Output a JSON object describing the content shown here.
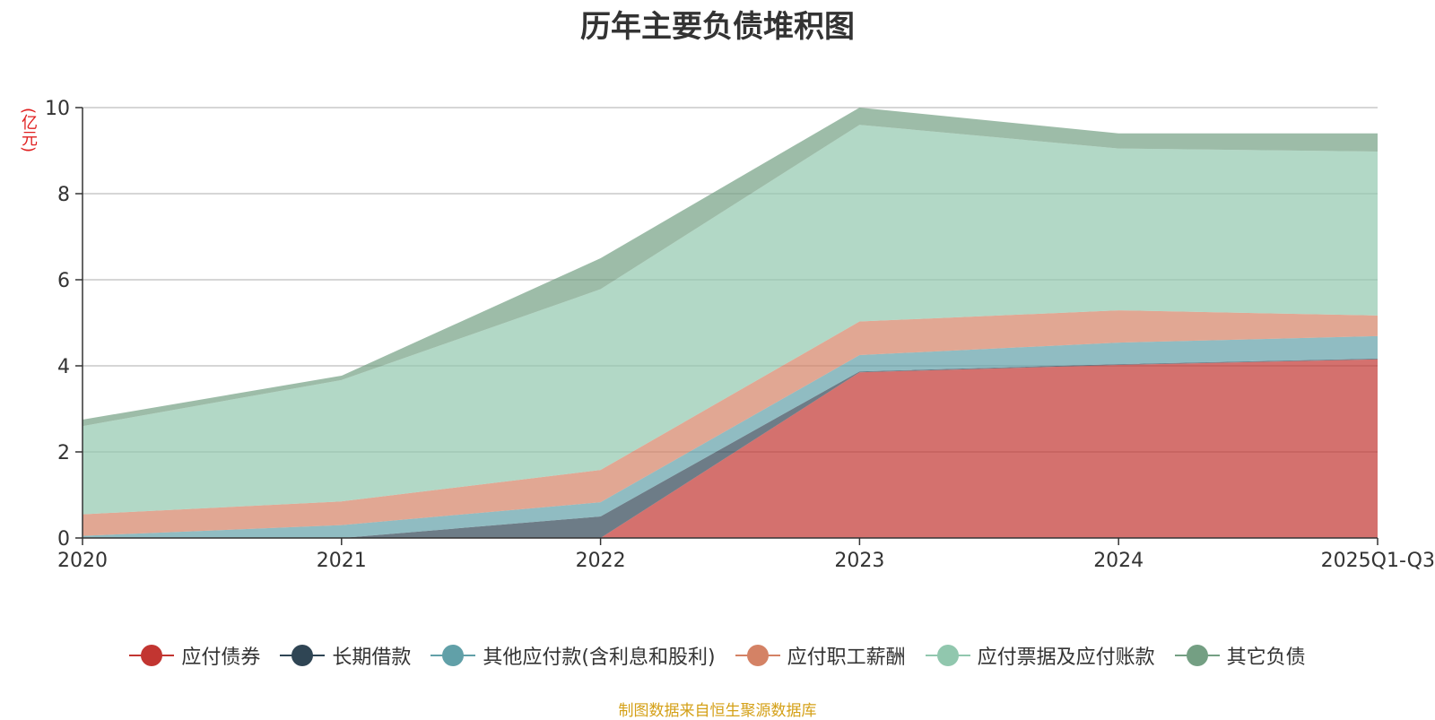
{
  "chart_data": {
    "type": "area",
    "stacked": true,
    "title": "历年主要负债堆积图",
    "ylabel": "(亿元)",
    "ylim": [
      0,
      10
    ],
    "yticks": [
      0,
      2,
      4,
      6,
      8,
      10
    ],
    "categories": [
      "2020",
      "2021",
      "2022",
      "2023",
      "2024",
      "2025Q1-Q3"
    ],
    "grid": true,
    "legend_position": "bottom",
    "series": [
      {
        "name": "应付债券",
        "color": "#c23531",
        "values": [
          0,
          0,
          0,
          3.85,
          4.02,
          4.15
        ]
      },
      {
        "name": "长期借款",
        "color": "#2f4554",
        "values": [
          0,
          0,
          0.5,
          0.02,
          0.02,
          0.02
        ]
      },
      {
        "name": "其他应付款(含利息和股利)",
        "color": "#61a0a8",
        "values": [
          0.05,
          0.3,
          0.33,
          0.38,
          0.5,
          0.52
        ]
      },
      {
        "name": "应付职工薪酬",
        "color": "#d48265",
        "values": [
          0.5,
          0.55,
          0.75,
          0.78,
          0.75,
          0.48
        ]
      },
      {
        "name": "应付票据及应付账款",
        "color": "#91c7ae",
        "values": [
          2.05,
          2.82,
          4.2,
          4.57,
          3.76,
          3.81
        ]
      },
      {
        "name": "其它负债",
        "color": "#749f83",
        "values": [
          0.15,
          0.1,
          0.72,
          0.4,
          0.35,
          0.42
        ]
      }
    ]
  },
  "source_note": "制图数据来自恒生聚源数据库"
}
